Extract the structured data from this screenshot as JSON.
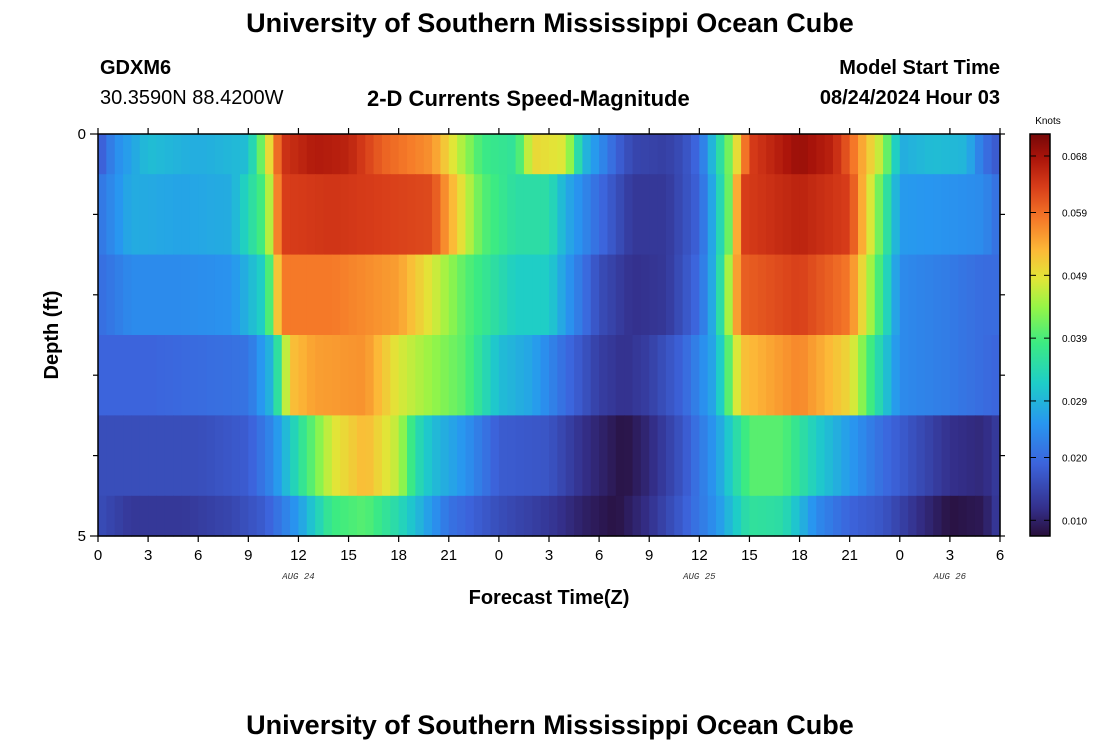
{
  "header": {
    "title": "University of Southern Mississippi Ocean Cube",
    "station": "GDXM6",
    "coords": "30.3590N  88.4200W",
    "subtitle": "2-D Currents Speed-Magnitude",
    "model_start_label": "Model Start Time",
    "model_start_value": "08/24/2024 Hour 03"
  },
  "footer": {
    "title": "University of Southern Mississippi Ocean Cube"
  },
  "chart_data": {
    "type": "heatmap",
    "title": "2-D Currents Speed-Magnitude",
    "xlabel": "Forecast Time(Z)",
    "ylabel": "Depth (ft)",
    "x_hours_range": [
      0,
      54
    ],
    "x_tick_labels": [
      "0",
      "3",
      "6",
      "9",
      "12",
      "15",
      "18",
      "21",
      "0",
      "3",
      "6",
      "9",
      "12",
      "15",
      "18",
      "21",
      "0",
      "3",
      "6"
    ],
    "date_labels": [
      {
        "label": "AUG 24",
        "hour": 12
      },
      {
        "label": "AUG 25",
        "hour": 36
      },
      {
        "label": "AUG 26",
        "hour": 51
      }
    ],
    "y_tick_labels": [
      {
        "label": "0",
        "depth": 0
      },
      {
        "label": "5",
        "depth": 5
      }
    ],
    "depth_range": [
      0,
      5
    ],
    "colorbar": {
      "unit": "Knots",
      "range": [
        0.0075,
        0.0715
      ],
      "ticks": [
        "0.068",
        "0.059",
        "0.049",
        "0.039",
        "0.029",
        "0.020",
        "0.010"
      ],
      "tick_values": [
        0.068,
        0.059,
        0.049,
        0.039,
        0.029,
        0.02,
        0.01
      ]
    },
    "layers": [
      {
        "depth": "0.0-0.5",
        "knots": [
          [
            0,
            0.017
          ],
          [
            1,
            0.024
          ],
          [
            3,
            0.03
          ],
          [
            6,
            0.028
          ],
          [
            9,
            0.03
          ],
          [
            10,
            0.045
          ],
          [
            11,
            0.064
          ],
          [
            13,
            0.067
          ],
          [
            15,
            0.066
          ],
          [
            17,
            0.06
          ],
          [
            20,
            0.056
          ],
          [
            23,
            0.038
          ],
          [
            25,
            0.036
          ],
          [
            26,
            0.05
          ],
          [
            28,
            0.048
          ],
          [
            29,
            0.03
          ],
          [
            31,
            0.019
          ],
          [
            32,
            0.015
          ],
          [
            34,
            0.014
          ],
          [
            35,
            0.016
          ],
          [
            36,
            0.02
          ],
          [
            37,
            0.032
          ],
          [
            38,
            0.045
          ],
          [
            39,
            0.063
          ],
          [
            42,
            0.069
          ],
          [
            44,
            0.066
          ],
          [
            45,
            0.06
          ],
          [
            47,
            0.045
          ],
          [
            48,
            0.028
          ],
          [
            50,
            0.03
          ],
          [
            52,
            0.029
          ],
          [
            53,
            0.021
          ],
          [
            54,
            0.017
          ]
        ]
      },
      {
        "depth": "0.5-1.5",
        "knots": [
          [
            0,
            0.021
          ],
          [
            2,
            0.028
          ],
          [
            5,
            0.027
          ],
          [
            8,
            0.028
          ],
          [
            10,
            0.04
          ],
          [
            11,
            0.063
          ],
          [
            14,
            0.064
          ],
          [
            17,
            0.063
          ],
          [
            20,
            0.062
          ],
          [
            23,
            0.04
          ],
          [
            25,
            0.035
          ],
          [
            27,
            0.035
          ],
          [
            28,
            0.028
          ],
          [
            30,
            0.02
          ],
          [
            32,
            0.013
          ],
          [
            34,
            0.013
          ],
          [
            36,
            0.019
          ],
          [
            37,
            0.03
          ],
          [
            38,
            0.045
          ],
          [
            38.5,
            0.063
          ],
          [
            42,
            0.066
          ],
          [
            45,
            0.063
          ],
          [
            46.5,
            0.045
          ],
          [
            48,
            0.026
          ],
          [
            51,
            0.025
          ],
          [
            53,
            0.024
          ],
          [
            54,
            0.02
          ]
        ]
      },
      {
        "depth": "1.5-2.5",
        "knots": [
          [
            0,
            0.02
          ],
          [
            2,
            0.024
          ],
          [
            5,
            0.024
          ],
          [
            8,
            0.025
          ],
          [
            10,
            0.033
          ],
          [
            11,
            0.058
          ],
          [
            14,
            0.058
          ],
          [
            18,
            0.055
          ],
          [
            20,
            0.048
          ],
          [
            22,
            0.04
          ],
          [
            25,
            0.032
          ],
          [
            27,
            0.032
          ],
          [
            28,
            0.026
          ],
          [
            30,
            0.016
          ],
          [
            32,
            0.012
          ],
          [
            34,
            0.013
          ],
          [
            36,
            0.02
          ],
          [
            37,
            0.03
          ],
          [
            38.5,
            0.06
          ],
          [
            42,
            0.063
          ],
          [
            45,
            0.058
          ],
          [
            46.5,
            0.042
          ],
          [
            48,
            0.024
          ],
          [
            51,
            0.022
          ],
          [
            53,
            0.02
          ],
          [
            54,
            0.02
          ]
        ]
      },
      {
        "depth": "2.5-3.5",
        "knots": [
          [
            0,
            0.019
          ],
          [
            3,
            0.019
          ],
          [
            6,
            0.02
          ],
          [
            9,
            0.021
          ],
          [
            10.5,
            0.03
          ],
          [
            11.5,
            0.052
          ],
          [
            13,
            0.055
          ],
          [
            16,
            0.056
          ],
          [
            18,
            0.048
          ],
          [
            20,
            0.044
          ],
          [
            22,
            0.04
          ],
          [
            24,
            0.03
          ],
          [
            26,
            0.027
          ],
          [
            28,
            0.02
          ],
          [
            30,
            0.014
          ],
          [
            31.5,
            0.012
          ],
          [
            33,
            0.014
          ],
          [
            35,
            0.019
          ],
          [
            37,
            0.028
          ],
          [
            38.5,
            0.052
          ],
          [
            42,
            0.057
          ],
          [
            45,
            0.05
          ],
          [
            46.5,
            0.036
          ],
          [
            48,
            0.024
          ],
          [
            51,
            0.022
          ],
          [
            54,
            0.019
          ]
        ]
      },
      {
        "depth": "3.5-4.5",
        "knots": [
          [
            0,
            0.016
          ],
          [
            3,
            0.016
          ],
          [
            6,
            0.016
          ],
          [
            9,
            0.018
          ],
          [
            10.5,
            0.024
          ],
          [
            12,
            0.035
          ],
          [
            14,
            0.048
          ],
          [
            16,
            0.053
          ],
          [
            18,
            0.046
          ],
          [
            19,
            0.035
          ],
          [
            20,
            0.03
          ],
          [
            22,
            0.025
          ],
          [
            24,
            0.018
          ],
          [
            27,
            0.017
          ],
          [
            29,
            0.012
          ],
          [
            31.5,
            0.008
          ],
          [
            33,
            0.011
          ],
          [
            35,
            0.017
          ],
          [
            37,
            0.026
          ],
          [
            39,
            0.04
          ],
          [
            41,
            0.04
          ],
          [
            43,
            0.032
          ],
          [
            45,
            0.026
          ],
          [
            47,
            0.02
          ],
          [
            49,
            0.016
          ],
          [
            51,
            0.012
          ],
          [
            53,
            0.011
          ],
          [
            54,
            0.014
          ]
        ]
      },
      {
        "depth": "4.5-5.0",
        "knots": [
          [
            0,
            0.016
          ],
          [
            2,
            0.013
          ],
          [
            5,
            0.013
          ],
          [
            8,
            0.015
          ],
          [
            10,
            0.018
          ],
          [
            12,
            0.026
          ],
          [
            14,
            0.038
          ],
          [
            16,
            0.04
          ],
          [
            18,
            0.034
          ],
          [
            19,
            0.03
          ],
          [
            21,
            0.021
          ],
          [
            24,
            0.016
          ],
          [
            27,
            0.013
          ],
          [
            29,
            0.01
          ],
          [
            31,
            0.008
          ],
          [
            33,
            0.012
          ],
          [
            35,
            0.018
          ],
          [
            37,
            0.025
          ],
          [
            39,
            0.036
          ],
          [
            41,
            0.035
          ],
          [
            43,
            0.024
          ],
          [
            45,
            0.019
          ],
          [
            47,
            0.017
          ],
          [
            49,
            0.012
          ],
          [
            51,
            0.008
          ],
          [
            53,
            0.009
          ],
          [
            54,
            0.014
          ]
        ]
      }
    ]
  }
}
